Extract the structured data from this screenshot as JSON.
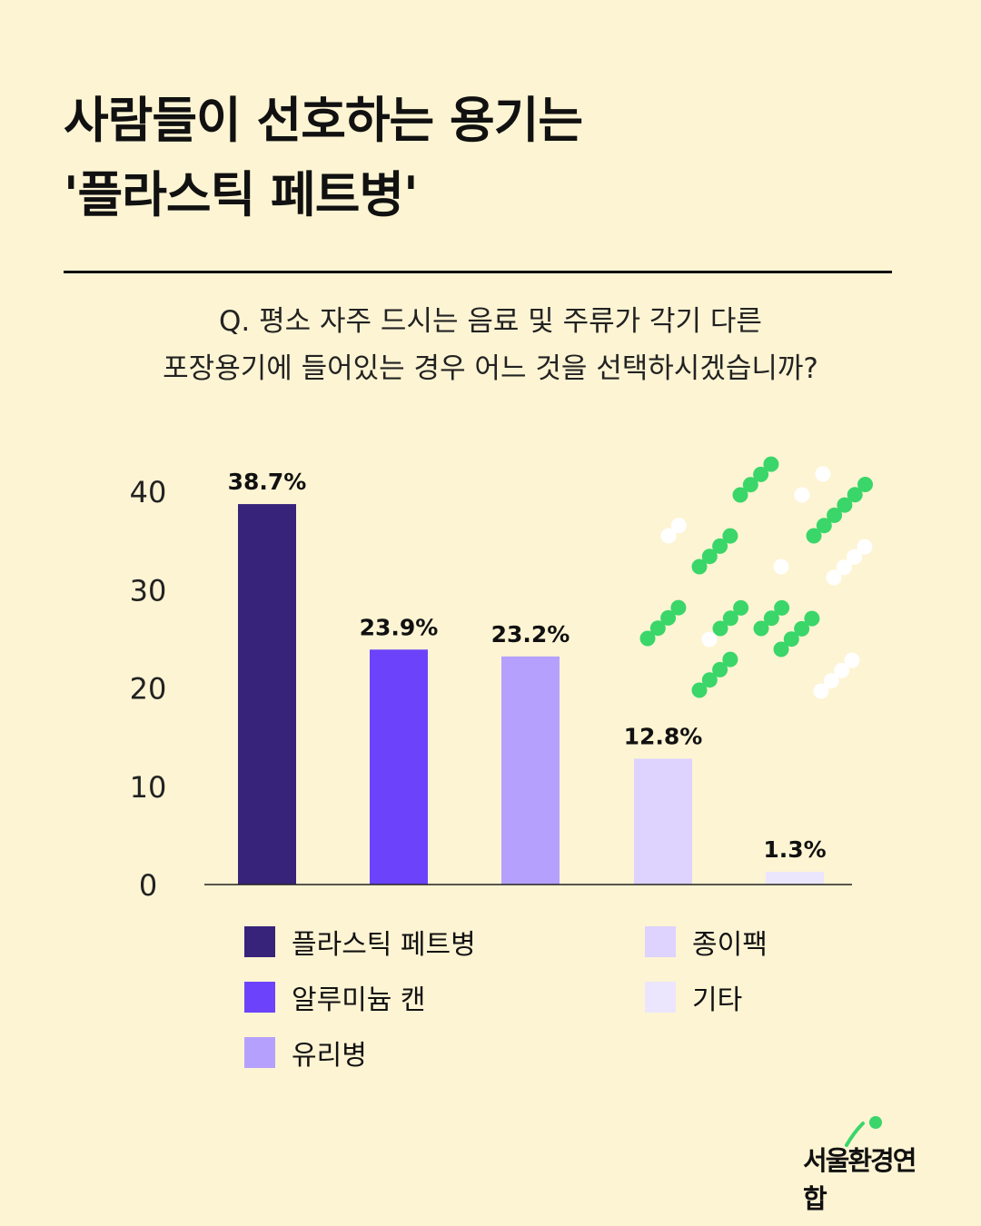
{
  "title": {
    "line1": "사람들이 선호하는 용기는",
    "line2": "'플라스틱 페트병'"
  },
  "question": {
    "line1": "Q. 평소 자주 드시는 음료 및 주류가 각기 다른",
    "line2": "포장용기에 들어있는 경우 어느 것을 선택하시겠습니까?"
  },
  "chart_data": {
    "type": "bar",
    "categories": [
      "플라스틱 페트병",
      "알루미늄 캔",
      "유리병",
      "종이팩",
      "기타"
    ],
    "values": [
      38.7,
      23.9,
      23.2,
      12.8,
      1.3
    ],
    "data_labels": [
      "38.7%",
      "23.9%",
      "23.2%",
      "12.8%",
      "1.3%"
    ],
    "colors": [
      "#37237a",
      "#6c43fb",
      "#b5a1fd",
      "#ddd3fe",
      "#ebe6fd"
    ],
    "yticks": [
      "0",
      "10",
      "20",
      "30",
      "40"
    ],
    "ytick_values": [
      0,
      10,
      20,
      30,
      40
    ],
    "ylim": [
      0,
      40
    ],
    "xlabel": "",
    "ylabel": "",
    "grid": false,
    "legend_placement": "bottom"
  },
  "logo": {
    "text": "서울환경연합"
  },
  "decor_colors": {
    "green": "#3ad66a",
    "white": "#ffffff"
  }
}
